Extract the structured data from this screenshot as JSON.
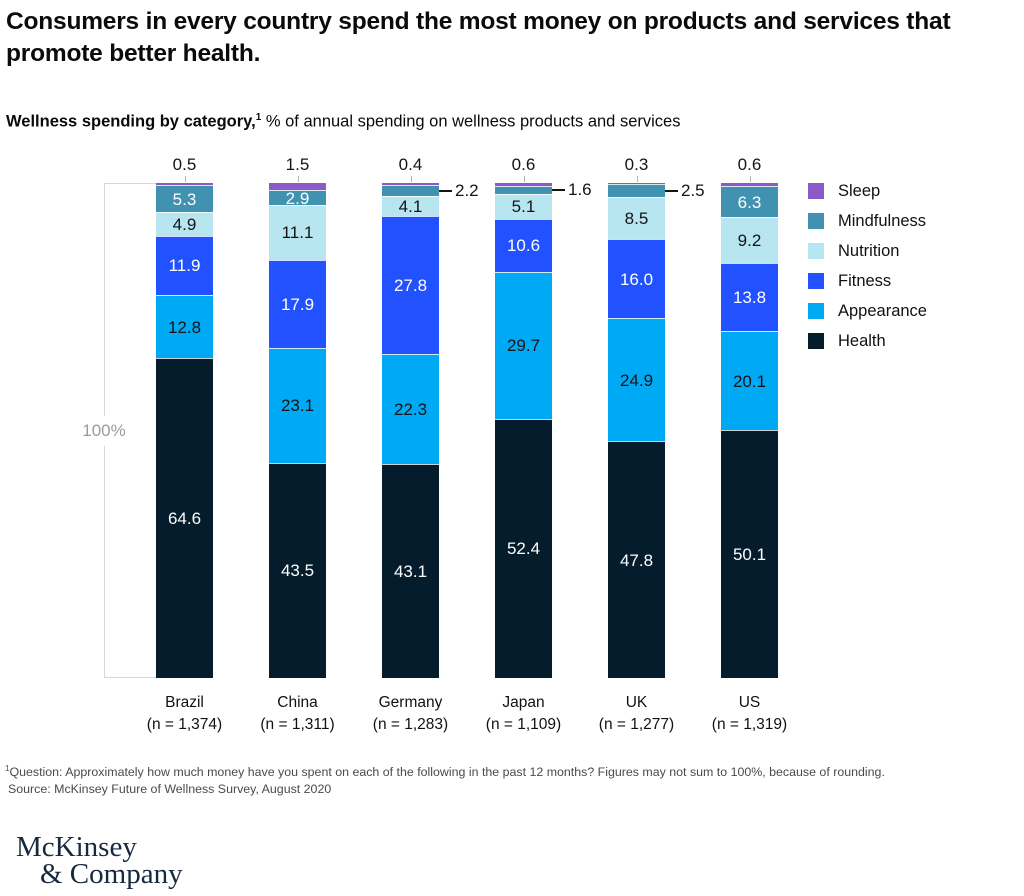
{
  "header": {
    "title": "Consumers in every country spend the most money on products and services that promote better health.",
    "subtitle_bold": "Wellness spending by category,",
    "subtitle_superscript": "1",
    "subtitle_rest": " % of annual spending on wellness products and services"
  },
  "chart_data": {
    "type": "bar",
    "stacked": true,
    "title": "Wellness spending by category, % of annual spending on wellness products and services",
    "axis_label": "100%",
    "ylim": [
      0,
      100
    ],
    "legend_position": "right",
    "categories": [
      "Brazil",
      "China",
      "Germany",
      "Japan",
      "UK",
      "US"
    ],
    "sample_sizes": [
      "(n = 1,374)",
      "(n = 1,311)",
      "(n = 1,283)",
      "(n = 1,109)",
      "(n = 1,277)",
      "(n = 1,319)"
    ],
    "series": [
      {
        "name": "Sleep",
        "color": "#8C5AC8",
        "text_color": "#141414",
        "values": [
          0.5,
          1.5,
          0.4,
          0.6,
          0.3,
          0.6
        ],
        "labels": [
          "0.5",
          "1.5",
          "0.4",
          "0.6",
          "0.3",
          "0.6"
        ],
        "label_pos": [
          "top",
          "top",
          "top",
          "top",
          "top",
          "top"
        ]
      },
      {
        "name": "Mindfulness",
        "color": "#4191B0",
        "text_color": "#ffffff",
        "values": [
          5.3,
          2.9,
          2.2,
          1.6,
          2.5,
          6.3
        ],
        "labels": [
          "5.3",
          "2.9",
          "2.2",
          "1.6",
          "2.5",
          "6.3"
        ],
        "label_pos": [
          "in",
          "in",
          "out",
          "out",
          "out",
          "in"
        ]
      },
      {
        "name": "Nutrition",
        "color": "#B7E6F0",
        "text_color": "#141414",
        "values": [
          4.9,
          11.1,
          4.1,
          5.1,
          8.5,
          9.2
        ],
        "labels": [
          "4.9",
          "11.1",
          "4.1",
          "5.1",
          "8.5",
          "9.2"
        ],
        "label_pos": [
          "in",
          "in",
          "in",
          "in",
          "in",
          "in"
        ]
      },
      {
        "name": "Fitness",
        "color": "#2251FF",
        "text_color": "#ffffff",
        "values": [
          11.9,
          17.9,
          27.8,
          10.6,
          16.0,
          13.8
        ],
        "labels": [
          "11.9",
          "17.9",
          "27.8",
          "10.6",
          "16.0",
          "13.8"
        ],
        "label_pos": [
          "in",
          "in",
          "in",
          "in",
          "in",
          "in"
        ]
      },
      {
        "name": "Appearance",
        "color": "#00A9F4",
        "text_color": "#141414",
        "values": [
          12.8,
          23.1,
          22.3,
          29.7,
          24.9,
          20.1
        ],
        "labels": [
          "12.8",
          "23.1",
          "22.3",
          "29.7",
          "24.9",
          "20.1"
        ],
        "label_pos": [
          "in",
          "in",
          "in",
          "in",
          "in",
          "in"
        ]
      },
      {
        "name": "Health",
        "color": "#051C2C",
        "text_color": "#ffffff",
        "values": [
          64.6,
          43.5,
          43.1,
          52.4,
          47.8,
          50.1
        ],
        "labels": [
          "64.6",
          "43.5",
          "43.1",
          "52.4",
          "47.8",
          "50.1"
        ],
        "label_pos": [
          "in",
          "in",
          "in",
          "in",
          "in",
          "in"
        ]
      }
    ],
    "legend": [
      "Sleep",
      "Mindfulness",
      "Nutrition",
      "Fitness",
      "Appearance",
      "Health"
    ]
  },
  "footnote": {
    "superscript": "1",
    "question": "Question: Approximately how much money have you spent on each of the following in the past 12 months? Figures may not sum to 100%, because of rounding.",
    "source": "Source: McKinsey Future of Wellness Survey, August 2020"
  },
  "logo": {
    "line1": "McKinsey",
    "line2": "& Company"
  }
}
